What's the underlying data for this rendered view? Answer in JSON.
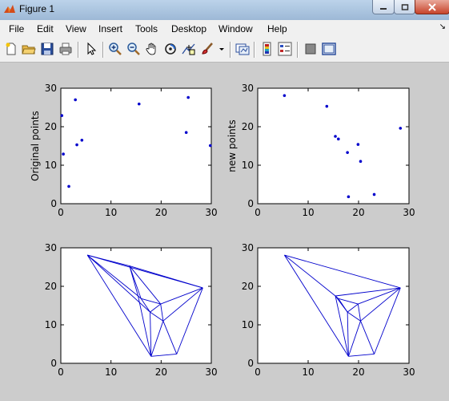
{
  "window": {
    "title": "Figure 1"
  },
  "menu": [
    "File",
    "Edit",
    "View",
    "Insert",
    "Tools",
    "Desktop",
    "Window",
    "Help"
  ],
  "toolbar": [
    "new-figure-icon",
    "open-file-icon",
    "save-icon",
    "print-icon",
    "edit-plot-arrow-icon",
    "zoom-in-icon",
    "zoom-out-icon",
    "pan-hand-icon",
    "rotate-3d-icon",
    "data-cursor-icon",
    "brush-icon",
    "dropdown-arrow-icon",
    "link-plot-icon",
    "insert-colorbar-icon",
    "insert-legend-icon",
    "hide-plot-tools-icon",
    "show-plot-tools-icon"
  ],
  "colors": {
    "series": "#0000cc",
    "figure_bg": "#cccccc"
  },
  "chart_data": [
    {
      "type": "scatter",
      "ylabel": "Original points",
      "xlim": [
        0,
        30
      ],
      "ylim": [
        0,
        30
      ],
      "xticks": [
        "0",
        "10",
        "20",
        "30"
      ],
      "yticks": [
        "0",
        "10",
        "20",
        "30"
      ],
      "x": [
        0.2,
        0.5,
        1.6,
        2.9,
        3.2,
        4.2,
        15.6,
        25.0,
        25.4,
        29.8
      ],
      "y": [
        22.9,
        12.9,
        4.5,
        27.0,
        15.3,
        16.5,
        25.9,
        18.5,
        27.6,
        15.1
      ]
    },
    {
      "type": "scatter",
      "ylabel": "new points",
      "xlim": [
        0,
        30
      ],
      "ylim": [
        0,
        30
      ],
      "xticks": [
        "0",
        "10",
        "20",
        "30"
      ],
      "yticks": [
        "0",
        "10",
        "20",
        "30"
      ],
      "x": [
        5.3,
        13.7,
        15.4,
        16.0,
        17.8,
        18.0,
        19.9,
        20.4,
        23.1,
        28.3
      ],
      "y": [
        28.1,
        25.3,
        17.5,
        16.8,
        13.3,
        1.8,
        15.4,
        11.0,
        2.4,
        19.6
      ]
    },
    {
      "type": "line",
      "xlim": [
        0,
        30
      ],
      "ylim": [
        0,
        30
      ],
      "xticks": [
        "0",
        "10",
        "20",
        "30"
      ],
      "yticks": [
        "0",
        "10",
        "20",
        "30"
      ],
      "points": [
        [
          5.3,
          28.1
        ],
        [
          13.7,
          25.3
        ],
        [
          15.4,
          17.5
        ],
        [
          16.0,
          16.8
        ],
        [
          17.8,
          13.3
        ],
        [
          18.0,
          1.8
        ],
        [
          19.9,
          15.4
        ],
        [
          20.4,
          11.0
        ],
        [
          23.1,
          2.4
        ],
        [
          28.3,
          19.6
        ]
      ],
      "edges": [
        [
          0,
          9
        ],
        [
          0,
          1
        ],
        [
          0,
          2
        ],
        [
          0,
          4
        ],
        [
          0,
          5
        ],
        [
          1,
          9
        ],
        [
          1,
          2
        ],
        [
          1,
          3
        ],
        [
          1,
          6
        ],
        [
          2,
          3
        ],
        [
          2,
          5
        ],
        [
          3,
          6
        ],
        [
          3,
          4
        ],
        [
          4,
          5
        ],
        [
          4,
          6
        ],
        [
          4,
          7
        ],
        [
          5,
          7
        ],
        [
          5,
          8
        ],
        [
          6,
          7
        ],
        [
          6,
          9
        ],
        [
          7,
          9
        ],
        [
          7,
          8
        ],
        [
          8,
          9
        ]
      ]
    },
    {
      "type": "line",
      "xlim": [
        0,
        30
      ],
      "ylim": [
        0,
        30
      ],
      "xticks": [
        "0",
        "10",
        "20",
        "30"
      ],
      "yticks": [
        "0",
        "10",
        "20",
        "30"
      ],
      "points": [
        [
          5.3,
          28.1
        ],
        [
          13.7,
          25.3
        ],
        [
          15.4,
          17.5
        ],
        [
          16.0,
          16.8
        ],
        [
          17.8,
          13.3
        ],
        [
          18.0,
          1.8
        ],
        [
          19.9,
          15.4
        ],
        [
          20.4,
          11.0
        ],
        [
          23.1,
          2.4
        ],
        [
          28.3,
          19.6
        ]
      ],
      "edges": [
        [
          0,
          9
        ],
        [
          0,
          2
        ],
        [
          0,
          5
        ],
        [
          2,
          9
        ],
        [
          2,
          3
        ],
        [
          2,
          4
        ],
        [
          2,
          5
        ],
        [
          3,
          4
        ],
        [
          3,
          6
        ],
        [
          4,
          5
        ],
        [
          4,
          6
        ],
        [
          4,
          7
        ],
        [
          5,
          7
        ],
        [
          5,
          8
        ],
        [
          6,
          7
        ],
        [
          6,
          9
        ],
        [
          7,
          9
        ],
        [
          7,
          8
        ],
        [
          8,
          9
        ]
      ]
    }
  ]
}
